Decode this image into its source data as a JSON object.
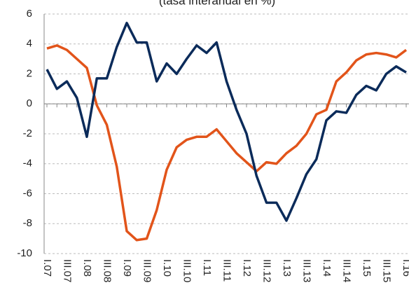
{
  "chart_data": {
    "type": "line",
    "title": "(tasa interanual en %)",
    "categories": [
      "I.07",
      null,
      "III.07",
      null,
      "I.08",
      null,
      "III.08",
      null,
      "I.09",
      null,
      "III.09",
      null,
      "I.10",
      null,
      "III.10",
      null,
      "I.11",
      null,
      "III.11",
      null,
      "I.12",
      null,
      "III.12",
      null,
      "I.13",
      null,
      "III.13",
      null,
      "I.14",
      null,
      "III.14",
      null,
      "I.15",
      null,
      "III.15",
      null,
      "I.16"
    ],
    "series": [
      {
        "color": "#e2541a",
        "values": [
          3.7,
          3.9,
          3.6,
          3.0,
          2.4,
          -0.1,
          -1.4,
          -4.2,
          -8.5,
          -9.1,
          -9.0,
          -7.1,
          -4.4,
          -2.9,
          -2.4,
          -2.2,
          -2.2,
          -1.7,
          -2.5,
          -3.3,
          -3.9,
          -4.5,
          -3.9,
          -4.0,
          -3.3,
          -2.8,
          -2.0,
          -0.7,
          -0.4,
          1.5,
          2.1,
          2.9,
          3.3,
          3.4,
          3.3,
          3.1,
          3.6
        ]
      },
      {
        "color": "#0b2b5a",
        "values": [
          2.3,
          1.0,
          1.5,
          0.4,
          -2.2,
          1.7,
          1.7,
          3.8,
          5.4,
          4.1,
          4.1,
          1.5,
          2.7,
          2.0,
          3.0,
          3.9,
          3.4,
          4.1,
          1.5,
          -0.4,
          -2.0,
          -4.8,
          -6.6,
          -6.6,
          -7.8,
          -6.3,
          -4.7,
          -3.7,
          -1.1,
          -0.5,
          -0.6,
          0.6,
          1.2,
          0.9,
          2.0,
          2.5,
          2.1
        ]
      }
    ],
    "ylim": [
      -10,
      6
    ],
    "yticks": [
      -10,
      -8,
      -6,
      -4,
      -2,
      0,
      2,
      4,
      6
    ],
    "grid": true
  }
}
